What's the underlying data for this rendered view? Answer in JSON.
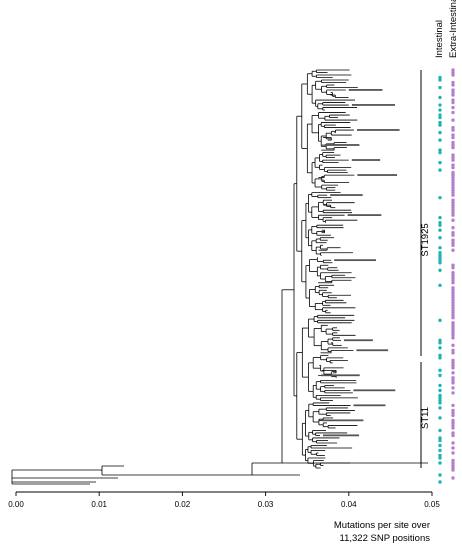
{
  "figure": {
    "column_headers": {
      "intestinal": "Intestinal",
      "extra_intestinal": "Extra-Intestinal"
    },
    "clades": [
      {
        "label": "ST1925"
      },
      {
        "label": "ST11"
      }
    ],
    "axis": {
      "ticks": [
        "0.00",
        "0.01",
        "0.02",
        "0.03",
        "0.04",
        "0.05"
      ],
      "tick_values": [
        0,
        0.01,
        0.02,
        0.03,
        0.04,
        0.05
      ],
      "range": [
        0,
        0.05
      ],
      "title_line1": "Mutations per site over",
      "title_line2": "11,322 SNP positions"
    },
    "colors": {
      "intestinal": "#1fb3b3",
      "extra_intestinal": "#b27fcc",
      "branch": "#000000"
    },
    "leaf_count": 160
  }
}
